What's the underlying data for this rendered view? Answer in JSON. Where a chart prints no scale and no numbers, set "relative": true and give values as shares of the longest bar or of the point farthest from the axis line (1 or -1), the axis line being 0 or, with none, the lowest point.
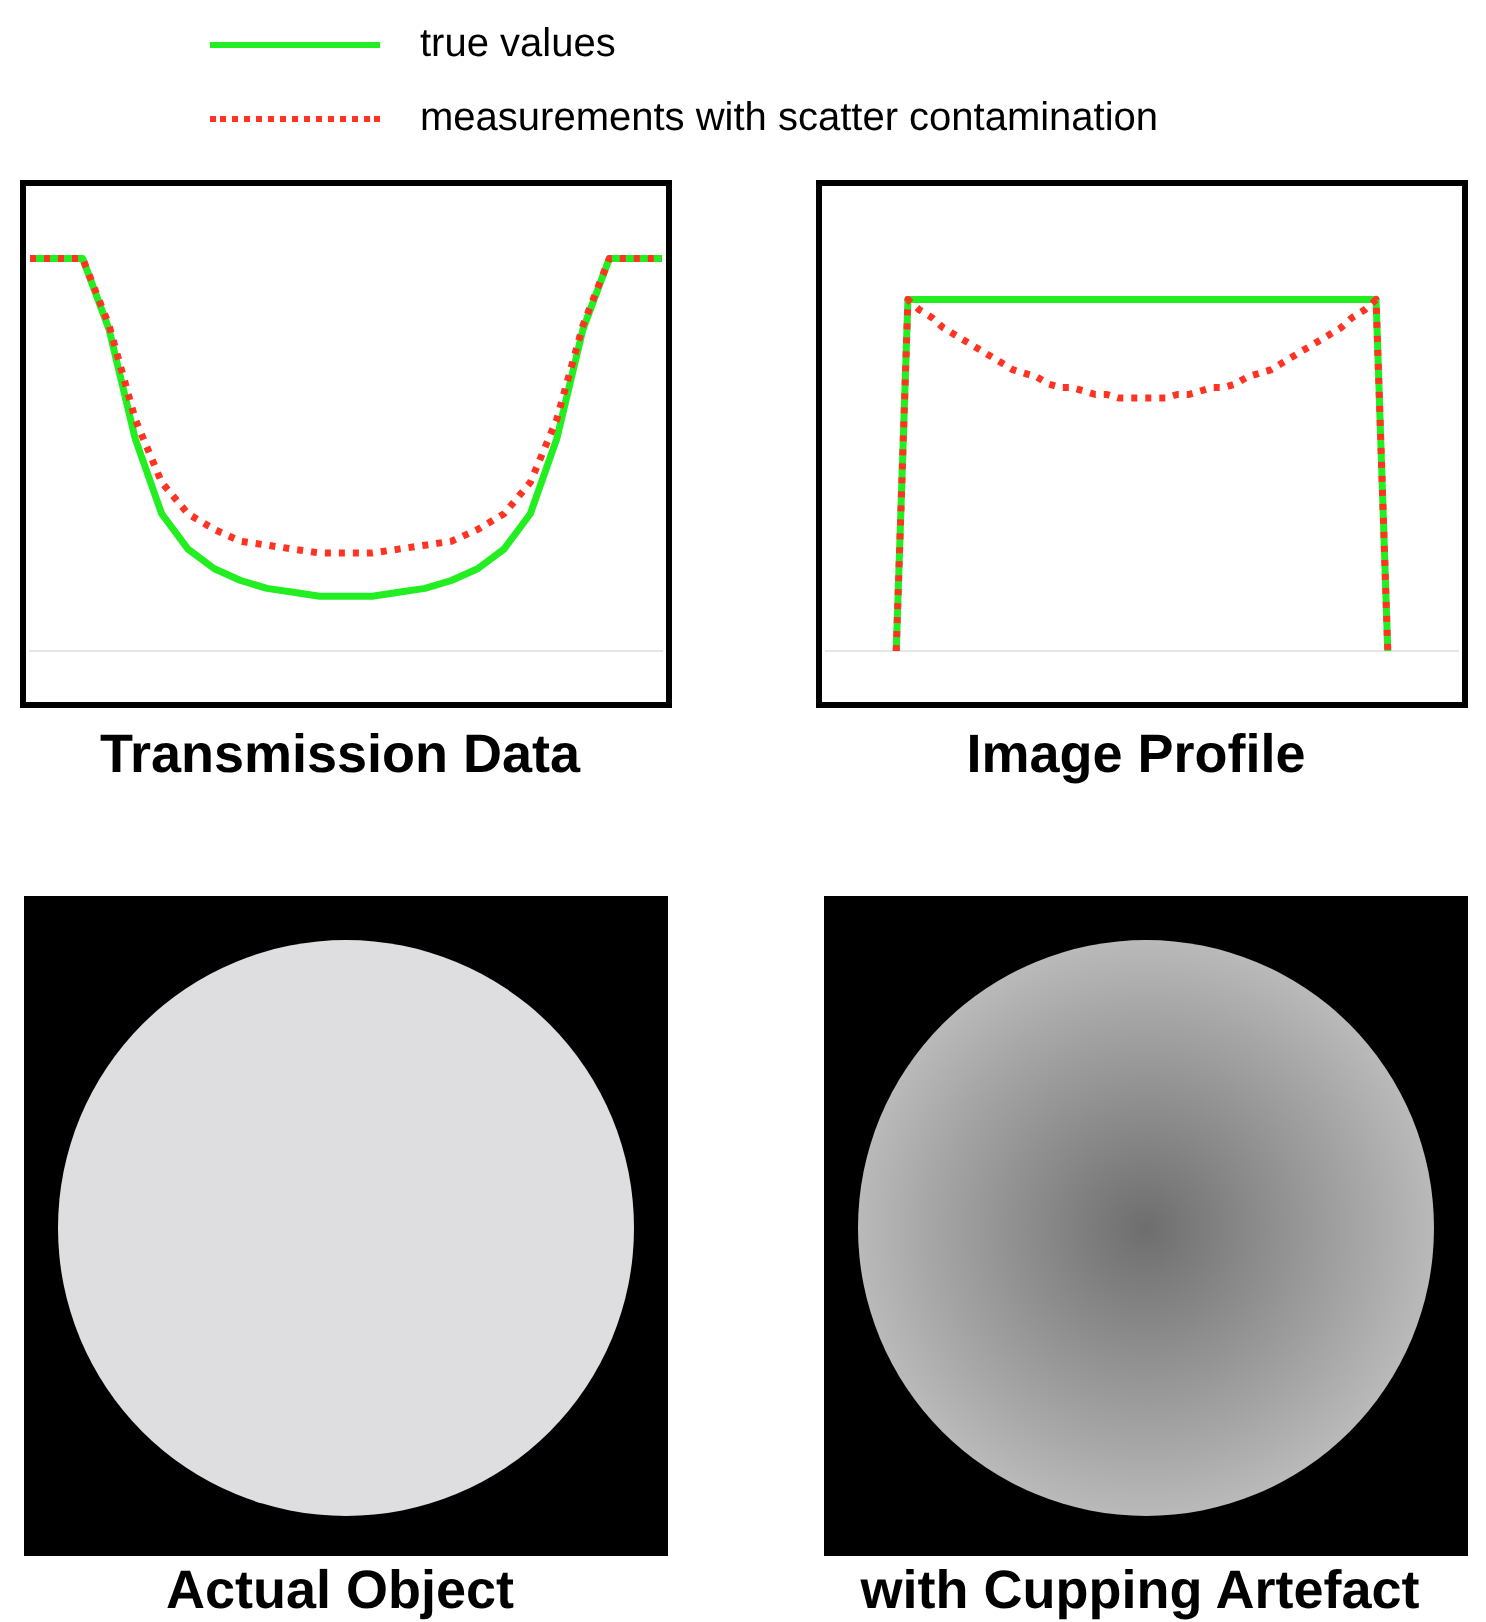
{
  "chart_data": [
    {
      "type": "line",
      "title": "Transmission Data",
      "relative": true,
      "legend": "top",
      "marker": "none",
      "categories": [
        null,
        null,
        null,
        null,
        null,
        null,
        null,
        null,
        null,
        null,
        null,
        null,
        null,
        null,
        null,
        null,
        null,
        null,
        null,
        null,
        null,
        null,
        null,
        null,
        null
      ],
      "series": [
        {
          "name": "true values",
          "color": "#22ee22",
          "line_style": "solid",
          "values": [
            1,
            1,
            1,
            0.82,
            0.54,
            0.35,
            0.26,
            0.21,
            0.18,
            0.16,
            0.15,
            0.14,
            0.14,
            0.14,
            0.15,
            0.16,
            0.18,
            0.21,
            0.26,
            0.35,
            0.54,
            0.82,
            1,
            1,
            1
          ]
        },
        {
          "name": "measurements with scatter contamination",
          "color": "#ff3322",
          "line_style": "dotted",
          "values": [
            1,
            1,
            1,
            0.83,
            0.59,
            0.43,
            0.35,
            0.31,
            0.28,
            0.27,
            0.26,
            0.25,
            0.25,
            0.25,
            0.26,
            0.27,
            0.28,
            0.31,
            0.35,
            0.43,
            0.59,
            0.83,
            1,
            1,
            1
          ]
        }
      ]
    },
    {
      "type": "line",
      "title": "Image Profile",
      "relative": true,
      "marker": "none",
      "categories": [
        null,
        null,
        null,
        null,
        null,
        null,
        null,
        null,
        null,
        null,
        null,
        null,
        null,
        null,
        null,
        null,
        null,
        null,
        null,
        null,
        null,
        null,
        null,
        null,
        null,
        null,
        null,
        null,
        null,
        null,
        null,
        null,
        null,
        null,
        null,
        null,
        null,
        null,
        null,
        null,
        null,
        null,
        null,
        null,
        null,
        null,
        null,
        null,
        null,
        null,
        null,
        null,
        null,
        null,
        null
      ],
      "series": [
        {
          "color": "#22ee22",
          "line_style": "solid",
          "values": [
            null,
            null,
            null,
            null,
            null,
            null,
            0,
            1,
            1,
            1,
            1,
            1,
            1,
            1,
            1,
            1,
            1,
            1,
            1,
            1,
            1,
            1,
            1,
            1,
            1,
            1,
            1,
            1,
            1,
            1,
            1,
            1,
            1,
            1,
            1,
            1,
            1,
            1,
            1,
            1,
            1,
            1,
            1,
            1,
            1,
            1,
            1,
            1,
            0,
            null,
            null,
            null,
            null,
            null,
            null
          ]
        },
        {
          "color": "#ff3322",
          "line_style": "dotted",
          "values": [
            null,
            null,
            null,
            null,
            null,
            null,
            0,
            1,
            0.97,
            0.95,
            0.92,
            0.9,
            0.88,
            0.86,
            0.84,
            0.82,
            0.8,
            0.79,
            0.78,
            0.76,
            0.75,
            0.75,
            0.74,
            0.73,
            0.73,
            0.72,
            0.72,
            0.72,
            0.72,
            0.72,
            0.73,
            0.73,
            0.74,
            0.75,
            0.75,
            0.76,
            0.78,
            0.79,
            0.8,
            0.82,
            0.84,
            0.86,
            0.88,
            0.9,
            0.92,
            0.95,
            0.97,
            1,
            0,
            null,
            null,
            null,
            null,
            null,
            null
          ]
        }
      ]
    },
    {
      "type": "other",
      "title": "Actual Object"
    },
    {
      "type": "other",
      "title": "with Cupping Artefact"
    }
  ]
}
